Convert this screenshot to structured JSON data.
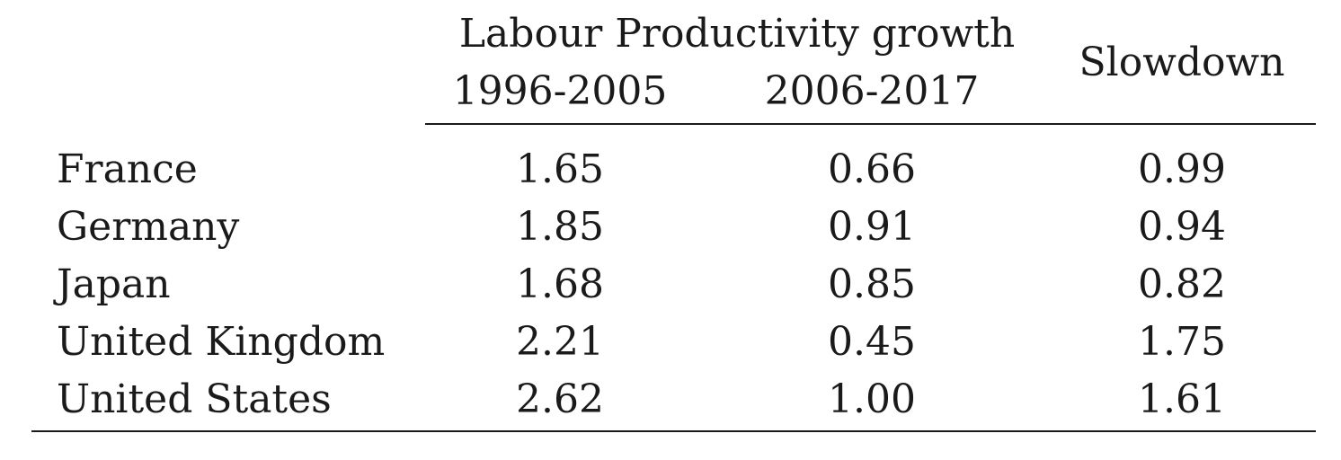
{
  "table": {
    "group_header": "Labour Productivity growth",
    "col_headers": [
      "1996-2005",
      "2006-2017",
      "Slowdown"
    ],
    "rows": [
      {
        "country": "France",
        "p1": "1.65",
        "p2": "0.66",
        "slowdown": "0.99"
      },
      {
        "country": "Germany",
        "p1": "1.85",
        "p2": "0.91",
        "slowdown": "0.94"
      },
      {
        "country": "Japan",
        "p1": "1.68",
        "p2": "0.85",
        "slowdown": "0.82"
      },
      {
        "country": "United Kingdom",
        "p1": "2.21",
        "p2": "0.45",
        "slowdown": "1.75"
      },
      {
        "country": "United States",
        "p1": "2.62",
        "p2": "1.00",
        "slowdown": "1.61"
      }
    ]
  }
}
